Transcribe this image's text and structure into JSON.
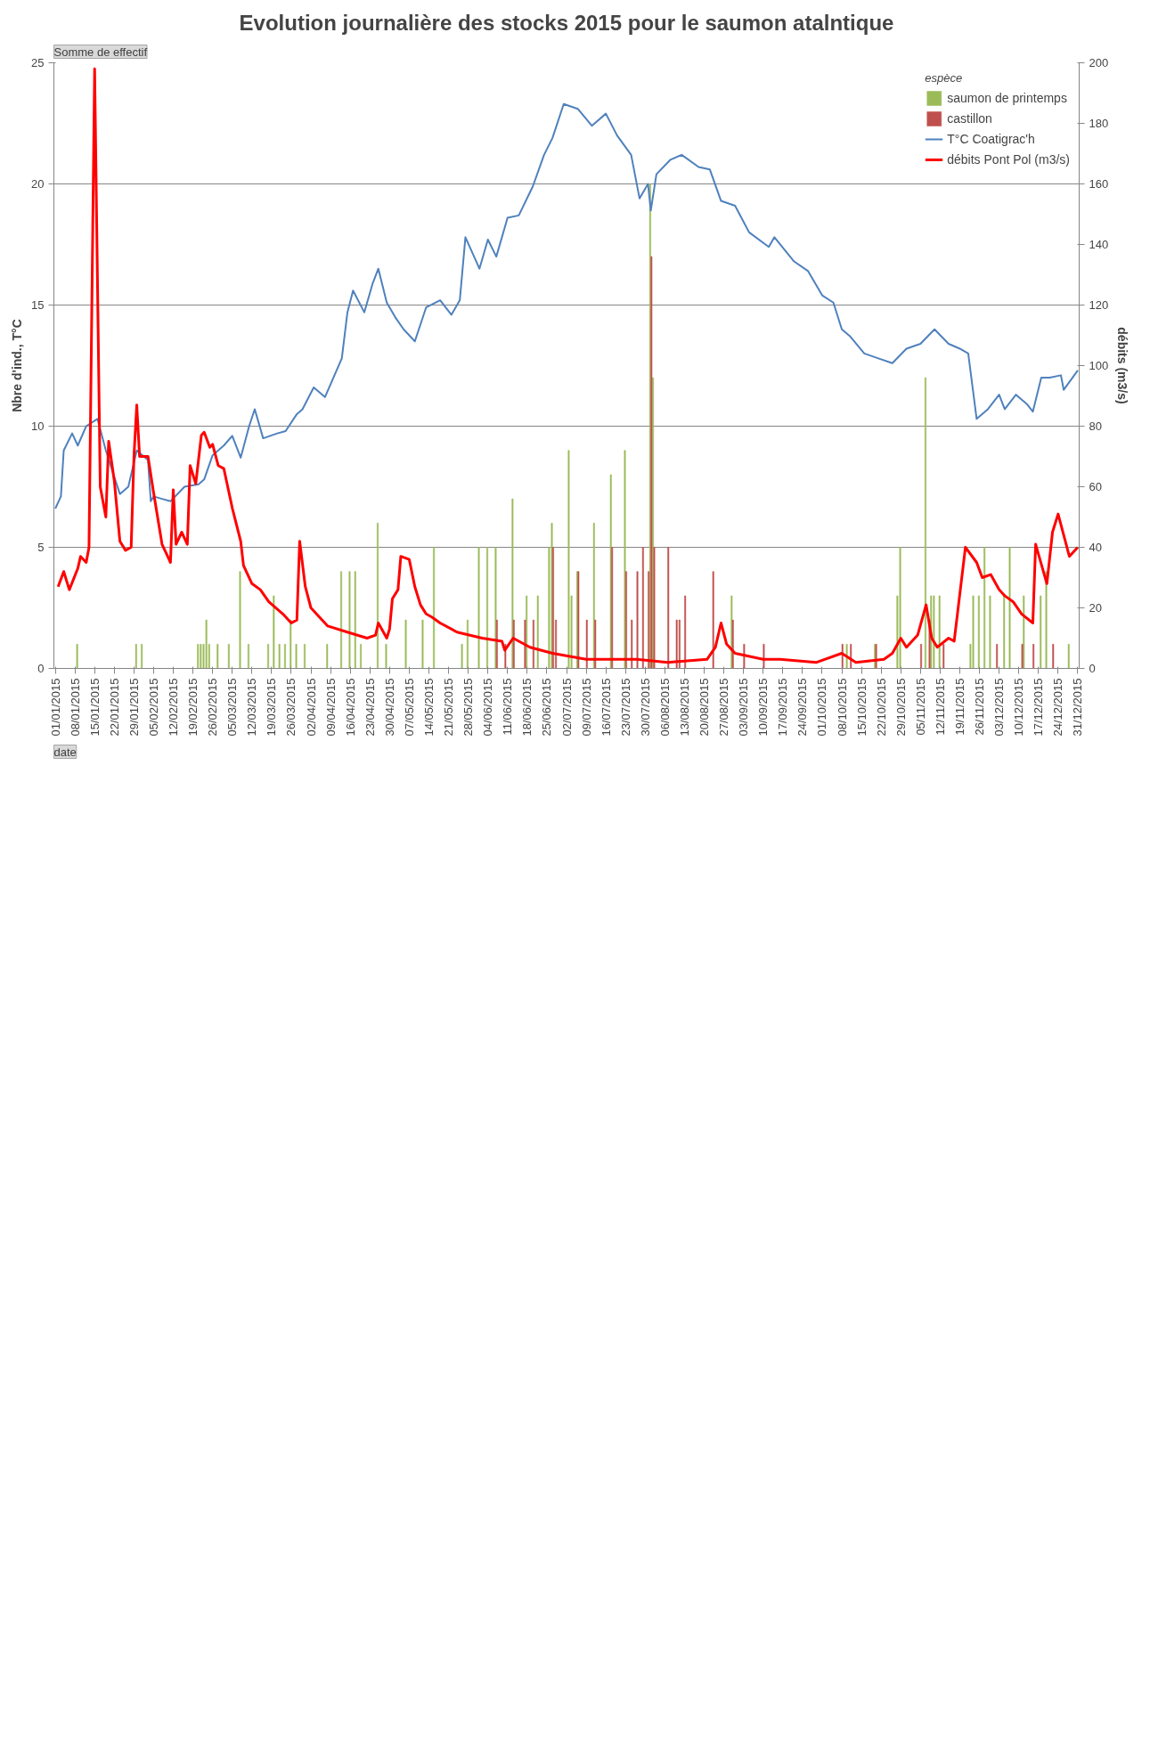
{
  "chart_data": {
    "type": "bar",
    "title": "Evolution journalière des stocks 2015 pour le saumon atalntique",
    "ylabel": "Nbre d'ind., T°C",
    "y2label": "débits (m3/s)",
    "legend_title": "espèce",
    "annotations": [
      "Somme de effectif",
      "date"
    ],
    "xlim": [
      "2014-12-31T12:00",
      "2015-12-31T12:00"
    ],
    "xticks": [
      {
        "value": "2015-01-01",
        "label": "01/01/2015"
      },
      {
        "value": "2015-01-08",
        "label": "08/01/2015"
      },
      {
        "value": "2015-01-15",
        "label": "15/01/2015"
      },
      {
        "value": "2015-01-22",
        "label": "22/01/2015"
      },
      {
        "value": "2015-01-29",
        "label": "29/01/2015"
      },
      {
        "value": "2015-02-05",
        "label": "05/02/2015"
      },
      {
        "value": "2015-02-12",
        "label": "12/02/2015"
      },
      {
        "value": "2015-02-19",
        "label": "19/02/2015"
      },
      {
        "value": "2015-02-26",
        "label": "26/02/2015"
      },
      {
        "value": "2015-03-05",
        "label": "05/03/2015"
      },
      {
        "value": "2015-03-12",
        "label": "12/03/2015"
      },
      {
        "value": "2015-03-19",
        "label": "19/03/2015"
      },
      {
        "value": "2015-03-26",
        "label": "26/03/2015"
      },
      {
        "value": "2015-04-02",
        "label": "02/04/2015"
      },
      {
        "value": "2015-04-09",
        "label": "09/04/2015"
      },
      {
        "value": "2015-04-16",
        "label": "16/04/2015"
      },
      {
        "value": "2015-04-23",
        "label": "23/04/2015"
      },
      {
        "value": "2015-04-30",
        "label": "30/04/2015"
      },
      {
        "value": "2015-05-07",
        "label": "07/05/2015"
      },
      {
        "value": "2015-05-14",
        "label": "14/05/2015"
      },
      {
        "value": "2015-05-21",
        "label": "21/05/2015"
      },
      {
        "value": "2015-05-28",
        "label": "28/05/2015"
      },
      {
        "value": "2015-06-04",
        "label": "04/06/2015"
      },
      {
        "value": "2015-06-11",
        "label": "11/06/2015"
      },
      {
        "value": "2015-06-18",
        "label": "18/06/2015"
      },
      {
        "value": "2015-06-25",
        "label": "25/06/2015"
      },
      {
        "value": "2015-07-02",
        "label": "02/07/2015"
      },
      {
        "value": "2015-07-09",
        "label": "09/07/2015"
      },
      {
        "value": "2015-07-16",
        "label": "16/07/2015"
      },
      {
        "value": "2015-07-23",
        "label": "23/07/2015"
      },
      {
        "value": "2015-07-30",
        "label": "30/07/2015"
      },
      {
        "value": "2015-08-06",
        "label": "06/08/2015"
      },
      {
        "value": "2015-08-13",
        "label": "13/08/2015"
      },
      {
        "value": "2015-08-20",
        "label": "20/08/2015"
      },
      {
        "value": "2015-08-27",
        "label": "27/08/2015"
      },
      {
        "value": "2015-09-03",
        "label": "03/09/2015"
      },
      {
        "value": "2015-09-10",
        "label": "10/09/2015"
      },
      {
        "value": "2015-09-17",
        "label": "17/09/2015"
      },
      {
        "value": "2015-09-24",
        "label": "24/09/2015"
      },
      {
        "value": "2015-10-01",
        "label": "01/10/2015"
      },
      {
        "value": "2015-10-08",
        "label": "08/10/2015"
      },
      {
        "value": "2015-10-15",
        "label": "15/10/2015"
      },
      {
        "value": "2015-10-22",
        "label": "22/10/2015"
      },
      {
        "value": "2015-10-29",
        "label": "29/10/2015"
      },
      {
        "value": "2015-11-05",
        "label": "05/11/2015"
      },
      {
        "value": "2015-11-12",
        "label": "12/11/2015"
      },
      {
        "value": "2015-11-19",
        "label": "19/11/2015"
      },
      {
        "value": "2015-11-26",
        "label": "26/11/2015"
      },
      {
        "value": "2015-12-03",
        "label": "03/12/2015"
      },
      {
        "value": "2015-12-10",
        "label": "10/12/2015"
      },
      {
        "value": "2015-12-17",
        "label": "17/12/2015"
      },
      {
        "value": "2015-12-24",
        "label": "24/12/2015"
      },
      {
        "value": "2015-12-31",
        "label": "31/12/2015"
      }
    ],
    "ylim": [
      0,
      25
    ],
    "yticks": [
      0,
      5,
      10,
      15,
      20,
      25
    ],
    "y2lim": [
      0,
      200
    ],
    "y2ticks": [
      0,
      20,
      40,
      60,
      80,
      100,
      120,
      140,
      160,
      180,
      200
    ],
    "grid": "y",
    "legend": "top right",
    "series": [
      {
        "name": "saumon de printemps",
        "color": "#9bbb59",
        "x": [
          "2015-01-09",
          "2015-01-30",
          "2015-02-01",
          "2015-02-21",
          "2015-02-22",
          "2015-02-23",
          "2015-02-24",
          "2015-02-25",
          "2015-02-28",
          "2015-03-04",
          "2015-03-08",
          "2015-03-11",
          "2015-03-18",
          "2015-03-20",
          "2015-03-22",
          "2015-03-24",
          "2015-03-26",
          "2015-03-28",
          "2015-03-31",
          "2015-04-08",
          "2015-04-13",
          "2015-04-16",
          "2015-04-18",
          "2015-04-20",
          "2015-04-26",
          "2015-04-29",
          "2015-05-06",
          "2015-05-12",
          "2015-05-16",
          "2015-05-26",
          "2015-05-28",
          "2015-06-01",
          "2015-06-04",
          "2015-06-07",
          "2015-06-13",
          "2015-06-18",
          "2015-06-22",
          "2015-06-26",
          "2015-06-27",
          "2015-07-03",
          "2015-07-04",
          "2015-07-06",
          "2015-07-12",
          "2015-07-18",
          "2015-07-23",
          "2015-08-01",
          "2015-08-02",
          "2015-08-30",
          "2015-10-10",
          "2015-10-20",
          "2015-10-28",
          "2015-10-29",
          "2015-11-07",
          "2015-11-09",
          "2015-11-10",
          "2015-11-12",
          "2015-11-23",
          "2015-11-24",
          "2015-11-26",
          "2015-11-28",
          "2015-11-30",
          "2015-12-05",
          "2015-12-07",
          "2015-12-12",
          "2015-12-18",
          "2015-12-20",
          "2015-12-28"
        ],
        "values": [
          1,
          1,
          1,
          1,
          1,
          1,
          2,
          1,
          1,
          1,
          4,
          1,
          1,
          3,
          1,
          1,
          2,
          1,
          1,
          1,
          4,
          4,
          4,
          1,
          6,
          1,
          2,
          2,
          5,
          1,
          2,
          5,
          5,
          5,
          7,
          3,
          3,
          5,
          6,
          9,
          3,
          4,
          6,
          8,
          9,
          20,
          12,
          3,
          1,
          1,
          3,
          5,
          12,
          3,
          3,
          3,
          1,
          3,
          3,
          5,
          3,
          3,
          5,
          3,
          3,
          4,
          1
        ]
      },
      {
        "name": "castillon",
        "color": "#c0504d",
        "x": [
          "2015-06-07",
          "2015-06-10",
          "2015-06-13",
          "2015-06-17",
          "2015-06-20",
          "2015-06-27",
          "2015-06-28",
          "2015-07-06",
          "2015-07-09",
          "2015-07-12",
          "2015-07-18",
          "2015-07-23",
          "2015-07-25",
          "2015-07-27",
          "2015-07-29",
          "2015-07-31",
          "2015-08-01",
          "2015-08-02",
          "2015-08-07",
          "2015-08-10",
          "2015-08-11",
          "2015-08-13",
          "2015-08-23",
          "2015-08-30",
          "2015-09-03",
          "2015-09-10",
          "2015-10-08",
          "2015-10-11",
          "2015-10-20",
          "2015-11-05",
          "2015-11-08",
          "2015-11-13",
          "2015-12-02",
          "2015-12-11",
          "2015-12-15",
          "2015-12-22"
        ],
        "values": [
          2,
          1,
          2,
          2,
          2,
          5,
          2,
          4,
          2,
          2,
          5,
          4,
          2,
          4,
          5,
          4,
          17,
          5,
          5,
          2,
          2,
          3,
          4,
          2,
          1,
          1,
          1,
          1,
          1,
          1,
          2,
          1,
          1,
          1,
          1,
          1
        ]
      },
      {
        "name": "T°C Coatigrac'h",
        "type": "line",
        "color": "#4f81bd",
        "x": [
          "2015-01-01",
          "2015-01-03",
          "2015-01-04",
          "2015-01-07",
          "2015-01-09",
          "2015-01-12",
          "2015-01-16",
          "2015-01-19",
          "2015-01-22",
          "2015-01-24",
          "2015-01-27",
          "2015-01-30",
          "2015-02-03",
          "2015-02-04",
          "2015-02-05",
          "2015-02-08",
          "2015-02-11",
          "2015-02-16",
          "2015-02-21",
          "2015-02-23",
          "2015-02-26",
          "2015-03-02",
          "2015-03-05",
          "2015-03-08",
          "2015-03-11",
          "2015-03-13",
          "2015-03-16",
          "2015-03-21",
          "2015-03-24",
          "2015-03-28",
          "2015-03-30",
          "2015-04-03",
          "2015-04-07",
          "2015-04-13",
          "2015-04-15",
          "2015-04-17",
          "2015-04-21",
          "2015-04-24",
          "2015-04-26",
          "2015-04-29",
          "2015-05-02",
          "2015-05-05",
          "2015-05-09",
          "2015-05-13",
          "2015-05-18",
          "2015-05-22",
          "2015-05-25",
          "2015-05-27",
          "2015-06-01",
          "2015-06-04",
          "2015-06-07",
          "2015-06-11",
          "2015-06-15",
          "2015-06-20",
          "2015-06-24",
          "2015-06-27",
          "2015-07-01",
          "2015-07-06",
          "2015-07-11",
          "2015-07-16",
          "2015-07-20",
          "2015-07-25",
          "2015-07-28",
          "2015-07-31",
          "2015-08-01",
          "2015-08-03",
          "2015-08-08",
          "2015-08-12",
          "2015-08-18",
          "2015-08-22",
          "2015-08-26",
          "2015-08-31",
          "2015-09-05",
          "2015-09-12",
          "2015-09-14",
          "2015-09-21",
          "2015-09-26",
          "2015-10-01",
          "2015-10-05",
          "2015-10-08",
          "2015-10-11",
          "2015-10-16",
          "2015-10-21",
          "2015-10-26",
          "2015-10-31",
          "2015-11-05",
          "2015-11-10",
          "2015-11-15",
          "2015-11-19",
          "2015-11-22",
          "2015-11-25",
          "2015-11-29",
          "2015-12-03",
          "2015-12-05",
          "2015-12-09",
          "2015-12-13",
          "2015-12-15",
          "2015-12-18",
          "2015-12-21",
          "2015-12-25",
          "2015-12-26",
          "2015-12-31"
        ],
        "values": [
          6.6,
          7.1,
          9.0,
          9.7,
          9.2,
          10.0,
          10.3,
          9.0,
          7.9,
          7.2,
          7.5,
          9.0,
          8.6,
          6.9,
          7.1,
          7.0,
          6.9,
          7.5,
          7.6,
          7.8,
          8.8,
          9.2,
          9.6,
          8.7,
          10.0,
          10.7,
          9.5,
          9.7,
          9.8,
          10.5,
          10.7,
          11.6,
          11.2,
          12.8,
          14.7,
          15.6,
          14.7,
          15.9,
          16.5,
          15.1,
          14.5,
          14.0,
          13.5,
          14.9,
          15.2,
          14.6,
          15.2,
          17.8,
          16.5,
          17.7,
          17.0,
          18.6,
          18.7,
          19.9,
          21.2,
          21.9,
          23.3,
          23.1,
          22.4,
          22.9,
          22.0,
          21.2,
          19.4,
          20.0,
          18.9,
          20.4,
          21.0,
          21.2,
          20.7,
          20.6,
          19.3,
          19.1,
          18.0,
          17.4,
          17.8,
          16.8,
          16.4,
          15.4,
          15.1,
          14.0,
          13.7,
          13.0,
          12.8,
          12.6,
          13.2,
          13.4,
          14.0,
          13.4,
          13.2,
          13.0,
          10.3,
          10.7,
          11.3,
          10.7,
          11.3,
          10.9,
          10.6,
          12.0,
          12.0,
          12.1,
          11.5,
          12.3
        ]
      },
      {
        "name": "débits Pont Pol (m3/s)",
        "type": "line",
        "axis": "y2",
        "color": "#ff0000",
        "x": [
          "2015-01-02",
          "2015-01-04",
          "2015-01-06",
          "2015-01-09",
          "2015-01-10",
          "2015-01-12",
          "2015-01-13",
          "2015-01-15",
          "2015-01-17",
          "2015-01-19",
          "2015-01-20",
          "2015-01-22",
          "2015-01-24",
          "2015-01-26",
          "2015-01-28",
          "2015-01-29",
          "2015-01-30",
          "2015-01-31",
          "2015-02-03",
          "2015-02-05",
          "2015-02-08",
          "2015-02-10",
          "2015-02-11",
          "2015-02-12",
          "2015-02-13",
          "2015-02-15",
          "2015-02-17",
          "2015-02-18",
          "2015-02-20",
          "2015-02-22",
          "2015-02-23",
          "2015-02-25",
          "2015-02-26",
          "2015-02-28",
          "2015-03-02",
          "2015-03-05",
          "2015-03-08",
          "2015-03-09",
          "2015-03-12",
          "2015-03-15",
          "2015-03-18",
          "2015-03-23",
          "2015-03-26",
          "2015-03-28",
          "2015-03-29",
          "2015-03-31",
          "2015-04-02",
          "2015-04-05",
          "2015-04-08",
          "2015-04-15",
          "2015-04-22",
          "2015-04-25",
          "2015-04-26",
          "2015-04-29",
          "2015-04-30",
          "2015-05-01",
          "2015-05-03",
          "2015-05-04",
          "2015-05-07",
          "2015-05-09",
          "2015-05-11",
          "2015-05-13",
          "2015-05-15",
          "2015-05-18",
          "2015-05-24",
          "2015-06-02",
          "2015-06-09",
          "2015-06-10",
          "2015-06-13",
          "2015-06-19",
          "2015-06-27",
          "2015-07-09",
          "2015-07-27",
          "2015-08-07",
          "2015-08-21",
          "2015-08-24",
          "2015-08-26",
          "2015-08-28",
          "2015-08-31",
          "2015-09-10",
          "2015-09-16",
          "2015-09-29",
          "2015-10-08",
          "2015-10-13",
          "2015-10-23",
          "2015-10-26",
          "2015-10-29",
          "2015-10-31",
          "2015-11-04",
          "2015-11-07",
          "2015-11-09",
          "2015-11-11",
          "2015-11-15",
          "2015-11-17",
          "2015-11-21",
          "2015-11-25",
          "2015-11-27",
          "2015-11-30",
          "2015-12-03",
          "2015-12-05",
          "2015-12-08",
          "2015-12-11",
          "2015-12-15",
          "2015-12-16",
          "2015-12-20",
          "2015-12-22",
          "2015-12-24",
          "2015-12-26",
          "2015-12-28",
          "2015-12-31"
        ],
        "values": [
          27,
          32,
          26,
          33,
          37,
          35,
          40,
          198,
          60,
          50,
          75,
          62,
          42,
          39,
          40,
          70,
          87,
          70,
          70,
          58,
          41,
          37,
          35,
          59,
          41,
          45,
          41,
          67,
          61,
          77,
          78,
          73,
          74,
          67,
          66,
          53,
          42,
          34,
          28,
          26,
          22,
          18,
          15,
          16,
          42,
          27,
          20,
          17,
          14,
          12,
          10,
          11,
          15,
          10,
          13,
          23,
          26,
          37,
          36,
          27,
          21,
          18,
          17,
          15,
          12,
          10,
          9,
          6,
          10,
          7,
          5,
          3,
          3,
          2,
          3,
          7,
          15,
          8,
          5,
          3,
          3,
          2,
          5,
          2,
          3,
          5,
          10,
          7,
          11,
          21,
          10,
          7,
          10,
          9,
          40,
          35,
          30,
          31,
          26,
          24,
          22,
          18,
          15,
          41,
          28,
          45,
          51,
          44,
          37,
          40
        ]
      }
    ]
  }
}
